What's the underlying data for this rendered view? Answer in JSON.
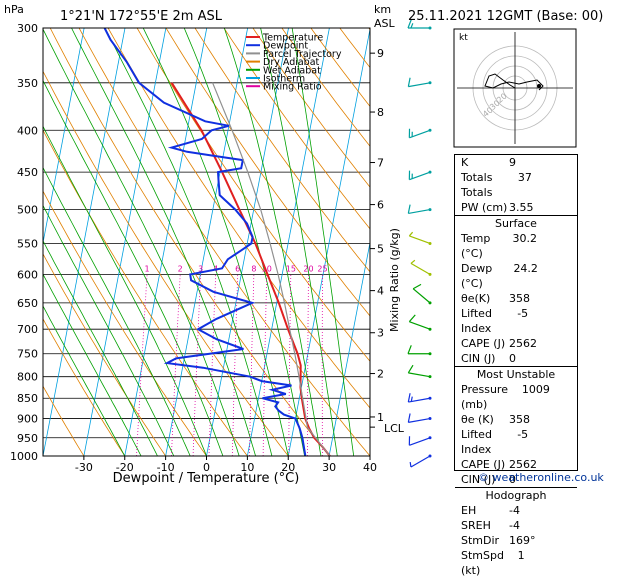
{
  "header": {
    "location": "1°21'N  172°55'E  2m  ASL",
    "datetime": "25.11.2021  12GMT  (Base: 00)",
    "hpa_label": "hPa",
    "km_label": "km",
    "asl_label": "ASL"
  },
  "legend": [
    {
      "label": "Temperature",
      "color": "#e02020"
    },
    {
      "label": "Dewpoint",
      "color": "#1030e0"
    },
    {
      "label": "Parcel Trajectory",
      "color": "#909090"
    },
    {
      "label": "Dry Adiabat",
      "color": "#e08000"
    },
    {
      "label": "Wet Adiabat",
      "color": "#00a000"
    },
    {
      "label": "Isotherm",
      "color": "#00a0e0"
    },
    {
      "label": "Mixing Ratio",
      "color": "#e000a0"
    }
  ],
  "chart_data": {
    "type": "line",
    "title": "",
    "xlabel": "Dewpoint / Temperature (°C)",
    "ylabel": "hPa",
    "xlim": [
      -40,
      40
    ],
    "xticks": [
      -30,
      -20,
      -10,
      0,
      10,
      20,
      30,
      40
    ],
    "pressure_levels": [
      300,
      350,
      400,
      450,
      500,
      550,
      600,
      650,
      700,
      750,
      800,
      850,
      900,
      950,
      1000
    ],
    "right_axis_label": "Mixing Ratio (g/kg)",
    "km_ticks": [
      {
        "km": "9",
        "p": 322
      },
      {
        "km": "8",
        "p": 380
      },
      {
        "km": "7",
        "p": 438
      },
      {
        "km": "6",
        "p": 493
      },
      {
        "km": "5",
        "p": 558
      },
      {
        "km": "4",
        "p": 628
      },
      {
        "km": "3",
        "p": 707
      },
      {
        "km": "2",
        "p": 793
      },
      {
        "km": "1",
        "p": 896
      }
    ],
    "lcl_label": "LCL",
    "lcl_p": 922,
    "mixing_ratio_labels": [
      "1",
      "2",
      "3",
      "4",
      "6",
      "8",
      "10",
      "15",
      "20",
      "25"
    ],
    "series": [
      {
        "name": "Temperature",
        "color": "#e02020",
        "points": [
          [
            1000,
            30.2
          ],
          [
            975,
            28
          ],
          [
            950,
            25.5
          ],
          [
            925,
            23.8
          ],
          [
            900,
            22.4
          ],
          [
            875,
            21.5
          ],
          [
            850,
            20.6
          ],
          [
            825,
            19.8
          ],
          [
            800,
            19.3
          ],
          [
            775,
            18.8
          ],
          [
            750,
            17.5
          ],
          [
            700,
            14.0
          ],
          [
            650,
            10.5
          ],
          [
            600,
            6.4
          ],
          [
            550,
            2.0
          ],
          [
            500,
            -3.5
          ],
          [
            450,
            -9.5
          ],
          [
            400,
            -16.5
          ],
          [
            350,
            -26.0
          ]
        ]
      },
      {
        "name": "Dewpoint",
        "color": "#1030e0",
        "points": [
          [
            1000,
            24.2
          ],
          [
            975,
            23.4
          ],
          [
            950,
            22.6
          ],
          [
            925,
            21.5
          ],
          [
            900,
            20.0
          ],
          [
            890,
            17.0
          ],
          [
            880,
            15.5
          ],
          [
            870,
            14.5
          ],
          [
            860,
            15.0
          ],
          [
            850,
            11.0
          ],
          [
            840,
            16.5
          ],
          [
            830,
            13.0
          ],
          [
            820,
            17.5
          ],
          [
            810,
            10.0
          ],
          [
            800,
            7.0
          ],
          [
            790,
            1.0
          ],
          [
            780,
            -5.0
          ],
          [
            770,
            -14.0
          ],
          [
            760,
            -12.0
          ],
          [
            750,
            -4.0
          ],
          [
            740,
            4.0
          ],
          [
            720,
            -3.0
          ],
          [
            700,
            -8.0
          ],
          [
            680,
            -4.0
          ],
          [
            650,
            4.0
          ],
          [
            630,
            -6.0
          ],
          [
            610,
            -12.0
          ],
          [
            600,
            -12.5
          ],
          [
            590,
            -5.0
          ],
          [
            575,
            -4.0
          ],
          [
            560,
            -1.0
          ],
          [
            550,
            1.0
          ],
          [
            540,
            1.0
          ],
          [
            520,
            -1.0
          ],
          [
            500,
            -4.5
          ],
          [
            480,
            -9.0
          ],
          [
            460,
            -10.0
          ],
          [
            450,
            -10.5
          ],
          [
            445,
            -5.0
          ],
          [
            435,
            -5.0
          ],
          [
            430,
            -12.0
          ],
          [
            425,
            -19.0
          ],
          [
            420,
            -23.0
          ],
          [
            410,
            -16.0
          ],
          [
            400,
            -14.0
          ],
          [
            395,
            -10.0
          ],
          [
            390,
            -16.0
          ],
          [
            370,
            -27.0
          ],
          [
            350,
            -34.0
          ],
          [
            330,
            -38.0
          ],
          [
            310,
            -43.0
          ],
          [
            300,
            -45.0
          ]
        ]
      },
      {
        "name": "Parcel Trajectory",
        "color": "#909090",
        "points": [
          [
            1000,
            30.2
          ],
          [
            950,
            25.8
          ],
          [
            922,
            23.3
          ],
          [
            900,
            22.6
          ],
          [
            850,
            20.8
          ],
          [
            800,
            18.9
          ],
          [
            750,
            16.8
          ],
          [
            700,
            14.4
          ],
          [
            650,
            11.9
          ],
          [
            600,
            9.0
          ],
          [
            550,
            5.6
          ],
          [
            500,
            1.7
          ],
          [
            450,
            -3.2
          ],
          [
            400,
            -9.0
          ],
          [
            350,
            -16.0
          ]
        ]
      }
    ],
    "wind_barbs_kt": [
      {
        "p": 300,
        "dir": 90,
        "spd": 15
      },
      {
        "p": 350,
        "dir": 80,
        "spd": 10
      },
      {
        "p": 400,
        "dir": 70,
        "spd": 15
      },
      {
        "p": 450,
        "dir": 70,
        "spd": 15
      },
      {
        "p": 500,
        "dir": 80,
        "spd": 10
      },
      {
        "p": 550,
        "dir": 110,
        "spd": 5
      },
      {
        "p": 600,
        "dir": 120,
        "spd": 5
      },
      {
        "p": 650,
        "dir": 130,
        "spd": 10
      },
      {
        "p": 700,
        "dir": 110,
        "spd": 10
      },
      {
        "p": 750,
        "dir": 90,
        "spd": 10
      },
      {
        "p": 800,
        "dir": 100,
        "spd": 10
      },
      {
        "p": 850,
        "dir": 80,
        "spd": 15
      },
      {
        "p": 900,
        "dir": 80,
        "spd": 10
      },
      {
        "p": 950,
        "dir": 70,
        "spd": 10
      },
      {
        "p": 1000,
        "dir": 60,
        "spd": 5
      }
    ]
  },
  "hodograph": {
    "label": "kt",
    "ring_labels": [
      "20",
      "30",
      "40"
    ]
  },
  "indices": [
    {
      "label": "K",
      "value": "9"
    },
    {
      "label": "Totals Totals",
      "value": "37"
    },
    {
      "label": "PW (cm)",
      "value": "3.55"
    }
  ],
  "surface": {
    "title": "Surface",
    "rows": [
      {
        "label": "Temp (°C)",
        "value": "30.2"
      },
      {
        "label": "Dewp (°C)",
        "value": "24.2"
      },
      {
        "label": "θe(K)",
        "value": "358"
      },
      {
        "label": "Lifted Index",
        "value": "-5"
      },
      {
        "label": "CAPE (J)",
        "value": "2562"
      },
      {
        "label": "CIN (J)",
        "value": "0"
      }
    ]
  },
  "most_unstable": {
    "title": "Most Unstable",
    "rows": [
      {
        "label": "Pressure (mb)",
        "value": "1009"
      },
      {
        "label": "θe (K)",
        "value": "358"
      },
      {
        "label": "Lifted Index",
        "value": "-5"
      },
      {
        "label": "CAPE (J)",
        "value": "2562"
      },
      {
        "label": "CIN (J)",
        "value": "0"
      }
    ]
  },
  "hodograph_table": {
    "title": "Hodograph",
    "rows": [
      {
        "label": "EH",
        "value": "-4"
      },
      {
        "label": "SREH",
        "value": "-4"
      },
      {
        "label": "StmDir",
        "value": "169°"
      },
      {
        "label": "StmSpd (kt)",
        "value": "1"
      }
    ]
  },
  "footer": "© weatheronline.co.uk"
}
